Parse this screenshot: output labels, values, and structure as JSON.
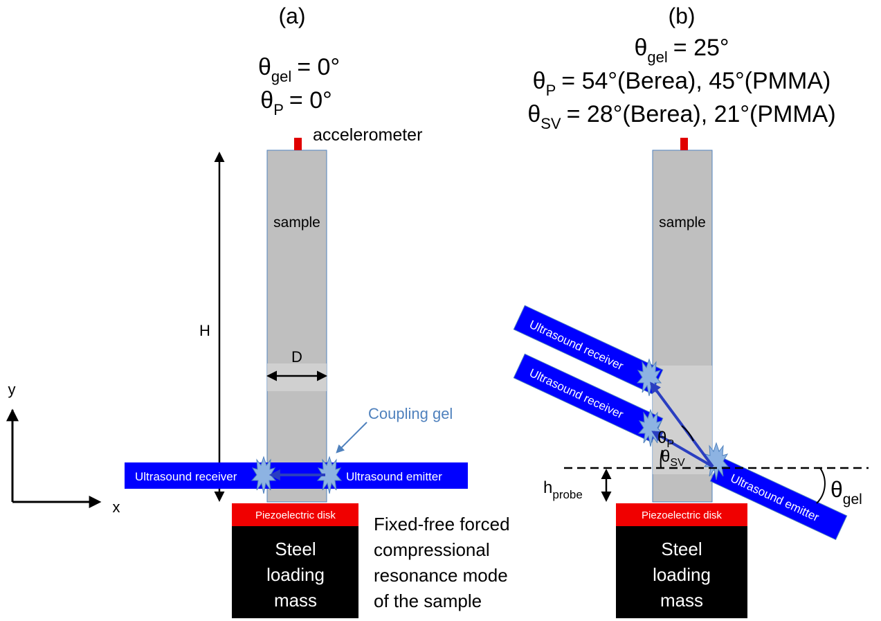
{
  "panel_a": {
    "label": "(a)",
    "equations": [
      {
        "symbol": "θ",
        "subscript": "gel",
        "value": "= 0°"
      },
      {
        "symbol": "θ",
        "subscript": "P",
        "value": "= 0°"
      }
    ],
    "accelerometer": "accelerometer",
    "sample": "sample",
    "height_label": "H",
    "diameter_label": "D",
    "coupling_gel": "Coupling gel",
    "receiver": "Ultrasound receiver",
    "emitter": "Ultrasound emitter",
    "piezo": "Piezoelectric disk",
    "mass": [
      "Steel",
      "loading",
      "mass"
    ],
    "caption": [
      "Fixed-free forced",
      "compressional",
      "resonance mode",
      "of the sample"
    ],
    "axis_x": "x",
    "axis_y": "y"
  },
  "panel_b": {
    "label": "(b)",
    "equations": [
      {
        "symbol": "θ",
        "subscript": "gel",
        "value": "= 25°"
      },
      {
        "symbol": "θ",
        "subscript": "P",
        "value": "= 54°(Berea), 45°(PMMA)"
      },
      {
        "symbol": "θ",
        "subscript": "SV",
        "value": "= 28°(Berea), 21°(PMMA)"
      }
    ],
    "sample": "sample",
    "receivers": [
      "Ultrasound receiver",
      "Ultrasound receiver"
    ],
    "emitter": "Ultrasound emitter",
    "angle_p": {
      "symbol": "θ",
      "subscript": "P"
    },
    "angle_sv": {
      "symbol": "θ",
      "subscript": "SV"
    },
    "probe_height": {
      "symbol": "h",
      "subscript": "probe"
    },
    "angle_gel": {
      "symbol": "θ",
      "subscript": "gel"
    },
    "piezo": "Piezoelectric disk",
    "mass": [
      "Steel",
      "loading",
      "mass"
    ]
  }
}
